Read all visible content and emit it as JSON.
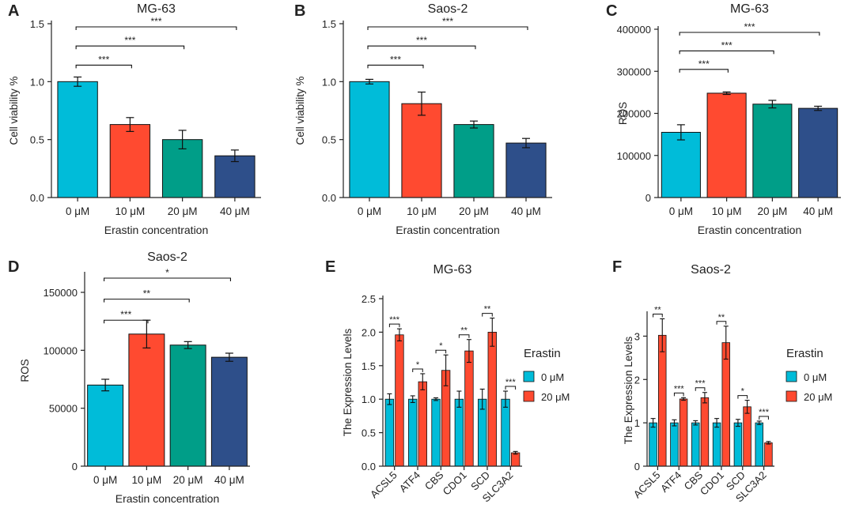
{
  "chart_data": [
    {
      "panel": "A",
      "type": "bar",
      "title": "MG-63",
      "xlabel": "Erastin concentration",
      "ylabel": "Cell viability %",
      "categories": [
        "0 μM",
        "10 μM",
        "20 μM",
        "40 μM"
      ],
      "values": [
        1.0,
        0.63,
        0.5,
        0.36
      ],
      "errors": [
        0.04,
        0.06,
        0.08,
        0.05
      ],
      "colors": [
        "#00BCD9",
        "#FF4A30",
        "#009E88",
        "#2E4F8A"
      ],
      "ylim": [
        0,
        1.5
      ],
      "yticks": [
        0.0,
        0.5,
        1.0,
        1.5
      ],
      "yticklabels": [
        "0.0",
        "0.5",
        "1.0",
        "1.5"
      ],
      "significance": [
        {
          "from": 0,
          "to": 1,
          "label": "***"
        },
        {
          "from": 0,
          "to": 2,
          "label": "***"
        },
        {
          "from": 0,
          "to": 3,
          "label": "***"
        }
      ]
    },
    {
      "panel": "B",
      "type": "bar",
      "title": "Saos-2",
      "xlabel": "Erastin concentration",
      "ylabel": "Cell viability %",
      "categories": [
        "0 μM",
        "10 μM",
        "20 μM",
        "40 μM"
      ],
      "values": [
        1.0,
        0.81,
        0.63,
        0.47
      ],
      "errors": [
        0.02,
        0.1,
        0.03,
        0.04
      ],
      "colors": [
        "#00BCD9",
        "#FF4A30",
        "#009E88",
        "#2E4F8A"
      ],
      "ylim": [
        0,
        1.5
      ],
      "yticks": [
        0.0,
        0.5,
        1.0,
        1.5
      ],
      "yticklabels": [
        "0.0",
        "0.5",
        "1.0",
        "1.5"
      ],
      "significance": [
        {
          "from": 0,
          "to": 1,
          "label": "***"
        },
        {
          "from": 0,
          "to": 2,
          "label": "***"
        },
        {
          "from": 0,
          "to": 3,
          "label": "***"
        }
      ]
    },
    {
      "panel": "C",
      "type": "bar",
      "title": "MG-63",
      "xlabel": "Erastin concentration",
      "ylabel": "ROS",
      "categories": [
        "0 μM",
        "10 μM",
        "20 μM",
        "40 μM"
      ],
      "values": [
        155000,
        248000,
        222000,
        212000
      ],
      "errors": [
        18000,
        3000,
        9000,
        5000
      ],
      "colors": [
        "#00BCD9",
        "#FF4A30",
        "#009E88",
        "#2E4F8A"
      ],
      "ylim": [
        0,
        400000
      ],
      "yticks": [
        0,
        100000,
        200000,
        300000,
        400000
      ],
      "yticklabels": [
        "0",
        "100000",
        "200000",
        "300000",
        "400000"
      ],
      "significance": [
        {
          "from": 0,
          "to": 1,
          "label": "***"
        },
        {
          "from": 0,
          "to": 2,
          "label": "***"
        },
        {
          "from": 0,
          "to": 3,
          "label": "***"
        }
      ]
    },
    {
      "panel": "D",
      "type": "bar",
      "title": "Saos-2",
      "xlabel": "Erastin concentration",
      "ylabel": "ROS",
      "categories": [
        "0 μM",
        "10 μM",
        "20 μM",
        "40 μM"
      ],
      "values": [
        70000,
        114000,
        104500,
        94000
      ],
      "errors": [
        5000,
        12000,
        3000,
        3500
      ],
      "colors": [
        "#00BCD9",
        "#FF4A30",
        "#009E88",
        "#2E4F8A"
      ],
      "ylim": [
        0,
        165000
      ],
      "yticks": [
        0,
        50000,
        100000,
        150000
      ],
      "yticklabels": [
        "0",
        "50000",
        "100000",
        "150000"
      ],
      "significance": [
        {
          "from": 0,
          "to": 1,
          "label": "***"
        },
        {
          "from": 0,
          "to": 2,
          "label": "**"
        },
        {
          "from": 0,
          "to": 3,
          "label": "*"
        }
      ]
    },
    {
      "panel": "E",
      "type": "grouped-bar",
      "title": "MG-63",
      "xlabel": "",
      "ylabel": "The Expression Levels",
      "categories": [
        "ACSL5",
        "ATF4",
        "CBS",
        "CDO1",
        "SCD",
        "SLC3A2"
      ],
      "series": [
        {
          "name": "0 μM",
          "color": "#00BCD9",
          "values": [
            1.0,
            1.0,
            1.0,
            1.0,
            1.0,
            1.0
          ],
          "errors": [
            0.08,
            0.05,
            0.02,
            0.12,
            0.15,
            0.12
          ]
        },
        {
          "name": "20 μM",
          "color": "#FF4A30",
          "values": [
            1.96,
            1.26,
            1.43,
            1.72,
            2.0,
            0.2
          ],
          "errors": [
            0.09,
            0.12,
            0.23,
            0.17,
            0.21,
            0.02
          ]
        }
      ],
      "ylim": [
        0,
        2.5
      ],
      "yticks": [
        0.0,
        0.5,
        1.0,
        1.5,
        2.0,
        2.5
      ],
      "yticklabels": [
        "0.0",
        "0.5",
        "1.0",
        "1.5",
        "2.0",
        "2.5"
      ],
      "significance": [
        "***",
        "*",
        "*",
        "**",
        "**",
        "***"
      ],
      "legend_title": "Erastin",
      "legend_position": "right"
    },
    {
      "panel": "F",
      "type": "grouped-bar",
      "title": "Saos-2",
      "xlabel": "",
      "ylabel": "The Expression Levels",
      "categories": [
        "ACSL5",
        "ATF4",
        "CBS",
        "CDO1",
        "SCD",
        "SLC3A2"
      ],
      "series": [
        {
          "name": "0 μM",
          "color": "#00BCD9",
          "values": [
            1.0,
            1.0,
            1.0,
            1.0,
            1.0,
            1.0
          ],
          "errors": [
            0.1,
            0.07,
            0.05,
            0.1,
            0.08,
            0.04
          ]
        },
        {
          "name": "20 μM",
          "color": "#FF4A30",
          "values": [
            3.02,
            1.55,
            1.58,
            2.85,
            1.37,
            0.54
          ],
          "errors": [
            0.38,
            0.03,
            0.12,
            0.38,
            0.15,
            0.03
          ]
        }
      ],
      "ylim": [
        0,
        3.5
      ],
      "yticks": [
        0,
        1,
        2,
        3
      ],
      "yticklabels": [
        "0",
        "1",
        "2",
        "3"
      ],
      "significance": [
        "**",
        "***",
        "***",
        "**",
        "*",
        "***"
      ],
      "legend_title": "Erastin",
      "legend_position": "right"
    }
  ]
}
